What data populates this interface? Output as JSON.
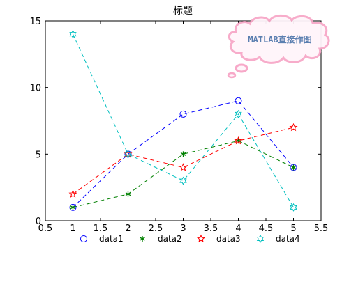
{
  "chart_data": {
    "type": "line",
    "title": "标题",
    "xlabel": "",
    "ylabel": "",
    "xlim": [
      0.5,
      5.5
    ],
    "ylim": [
      0,
      15
    ],
    "xticks": [
      0.5,
      1,
      1.5,
      2,
      2.5,
      3,
      3.5,
      4,
      4.5,
      5,
      5.5
    ],
    "xtick_labels": [
      "0.5",
      "1",
      "1.5",
      "2",
      "2.5",
      "3",
      "3.5",
      "4",
      "4.5",
      "5",
      "5.5"
    ],
    "yticks": [
      0,
      5,
      10,
      15
    ],
    "ytick_labels": [
      "0",
      "5",
      "10",
      "15"
    ],
    "grid": false,
    "legend_position": "bottom",
    "x": [
      1,
      2,
      3,
      4,
      5
    ],
    "series": [
      {
        "name": "data1",
        "values": [
          1,
          5,
          8,
          9,
          4
        ],
        "color": "#0000ff",
        "marker": "circle",
        "linestyle": "dashed"
      },
      {
        "name": "data2",
        "values": [
          1,
          2,
          5,
          6,
          4
        ],
        "color": "#008000",
        "marker": "asterisk",
        "linestyle": "dashed"
      },
      {
        "name": "data3",
        "values": [
          2,
          5,
          4,
          6,
          7
        ],
        "color": "#ff0000",
        "marker": "pentagram",
        "linestyle": "dashed"
      },
      {
        "name": "data4",
        "values": [
          14,
          5,
          3,
          8,
          1
        ],
        "color": "#00bfbf",
        "marker": "hexagram",
        "linestyle": "dashed"
      }
    ]
  },
  "watermark": {
    "text": "MATLAB直接作图",
    "color": "#5b7fb0",
    "cloud_color": "#f7a8c8"
  }
}
